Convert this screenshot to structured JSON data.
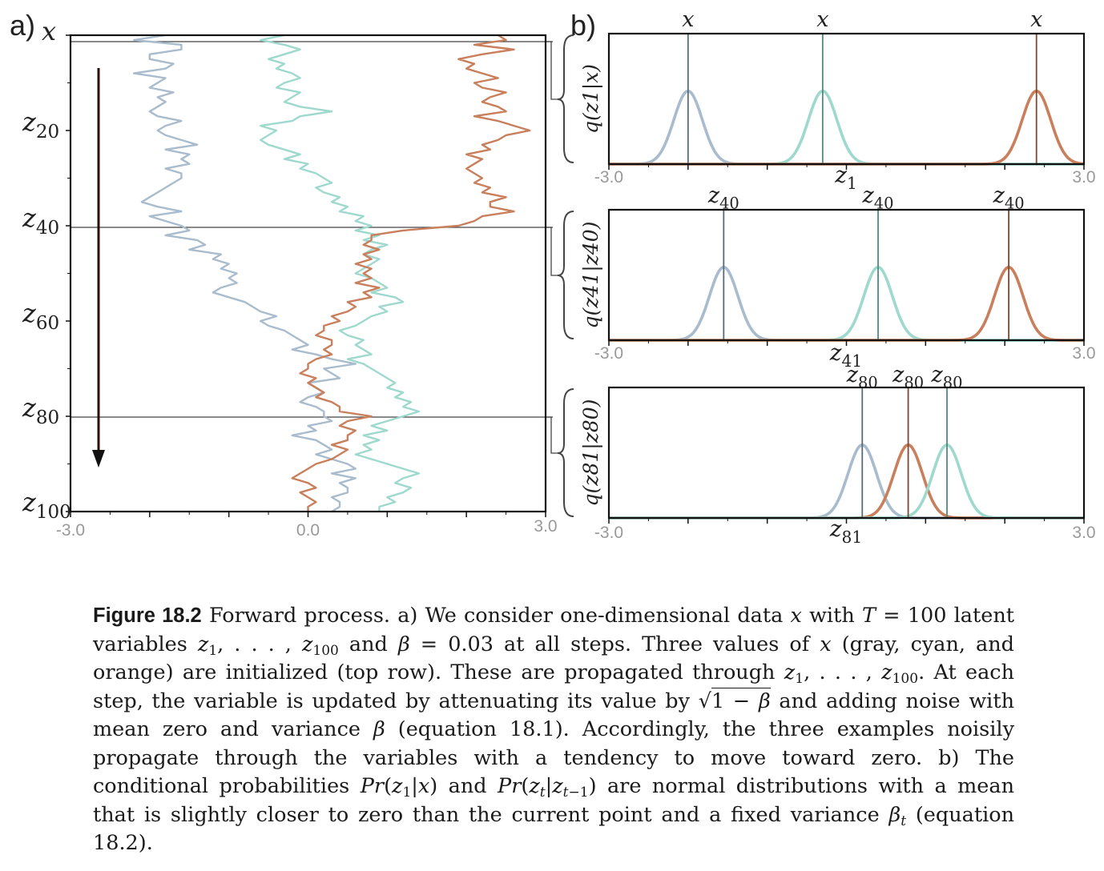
{
  "colors": {
    "gray": "#a9bccd",
    "cyan": "#9fd9ce",
    "orange": "#c97f5c",
    "gray_dark": "#5b6b78",
    "cyan_dark": "#4f8a80",
    "orange_dark": "#7a4a33",
    "axis": "#111111"
  },
  "panel_a": {
    "label": "a)",
    "ylabels": [
      "x",
      "z20",
      "z40",
      "z60",
      "z80",
      "z100"
    ]
  },
  "panel_b": {
    "label": "b)"
  },
  "chart_data": [
    {
      "type": "line",
      "panel": "a",
      "xlim": [
        -3.0,
        3.0
      ],
      "xticks": [
        "-3.0",
        "0.0",
        "3.0"
      ],
      "y_steps": [
        0,
        100
      ],
      "arrow": "downward",
      "series": [
        {
          "color": "gray",
          "values": [
            -1.8,
            -2.2,
            -1.6,
            -1.6,
            -2.0,
            -2.0,
            -1.7,
            -1.8,
            -2.2,
            -1.8,
            -1.9,
            -2.0,
            -1.7,
            -1.9,
            -1.8,
            -1.9,
            -2.0,
            -1.9,
            -1.6,
            -1.8,
            -1.9,
            -1.8,
            -1.6,
            -1.4,
            -1.8,
            -1.5,
            -1.6,
            -1.5,
            -1.8,
            -1.6,
            -1.6,
            -1.7,
            -1.8,
            -1.9,
            -2.0,
            -2.1,
            -1.9,
            -1.6,
            -2.0,
            -1.8,
            -1.6,
            -1.5,
            -1.8,
            -1.4,
            -1.3,
            -1.5,
            -1.1,
            -1.2,
            -1.0,
            -1.1,
            -0.9,
            -1.0,
            -0.9,
            -1.1,
            -1.2,
            -1.0,
            -0.8,
            -0.7,
            -0.6,
            -0.4,
            -0.6,
            -0.5,
            -0.3,
            -0.2,
            -0.1,
            0.0,
            -0.2,
            0.1,
            0.3,
            0.6,
            0.2,
            0.3,
            0.4,
            0.0,
            0.1,
            0.2,
            0.0,
            -0.1,
            0.1,
            0.2,
            0.2,
            0.3,
            0.0,
            0.1,
            -0.2,
            0.1,
            0.2,
            0.3,
            0.1,
            0.3,
            0.5,
            0.6,
            0.3,
            0.6,
            0.4,
            0.5,
            0.5,
            0.3,
            0.4,
            0.4,
            0.3
          ]
        },
        {
          "color": "cyan",
          "values": [
            -0.3,
            -0.6,
            -0.3,
            -0.1,
            -0.3,
            -0.5,
            -0.3,
            -0.4,
            -0.2,
            -0.1,
            -0.3,
            -0.4,
            -0.1,
            -0.2,
            -0.3,
            -0.1,
            0.3,
            -0.1,
            -0.2,
            -0.6,
            -0.4,
            -0.5,
            -0.6,
            -0.5,
            -0.3,
            -0.1,
            -0.3,
            0.0,
            -0.1,
            0.1,
            0.2,
            0.3,
            0.1,
            0.2,
            0.4,
            0.3,
            0.5,
            0.4,
            0.7,
            0.6,
            0.8,
            0.6,
            0.9,
            0.7,
            1.0,
            0.8,
            0.7,
            0.9,
            0.8,
            0.7,
            0.6,
            0.8,
            0.9,
            1.0,
            0.8,
            1.1,
            1.2,
            0.9,
            1.0,
            0.8,
            0.7,
            0.6,
            0.4,
            0.5,
            0.7,
            0.6,
            0.7,
            0.8,
            0.5,
            0.7,
            0.8,
            0.9,
            1.0,
            1.1,
            1.0,
            1.2,
            1.1,
            1.3,
            1.2,
            1.4,
            1.2,
            1.0,
            0.8,
            1.0,
            0.7,
            0.9,
            0.7,
            0.8,
            0.6,
            0.8,
            1.0,
            1.2,
            1.4,
            1.2,
            1.1,
            1.3,
            1.2,
            1.0,
            1.1,
            0.9,
            0.9
          ]
        },
        {
          "color": "orange",
          "values": [
            2.4,
            2.5,
            2.1,
            2.6,
            2.2,
            1.9,
            2.1,
            2.0,
            2.2,
            2.4,
            2.1,
            2.2,
            2.5,
            2.3,
            2.2,
            2.4,
            2.5,
            2.1,
            2.4,
            2.6,
            2.8,
            2.5,
            2.4,
            2.2,
            2.3,
            2.0,
            2.2,
            2.1,
            2.0,
            2.1,
            2.2,
            2.1,
            2.3,
            2.2,
            2.5,
            2.3,
            2.3,
            2.6,
            2.2,
            2.1,
            1.9,
            1.2,
            0.8,
            0.8,
            0.7,
            0.9,
            0.7,
            0.8,
            0.6,
            0.8,
            0.7,
            0.8,
            0.6,
            0.9,
            0.7,
            0.8,
            0.5,
            0.6,
            0.5,
            0.3,
            0.4,
            0.2,
            0.2,
            0.1,
            0.3,
            0.3,
            0.2,
            0.3,
            0.1,
            0.0,
            0.0,
            -0.1,
            0.1,
            0.0,
            0.1,
            0.2,
            0.1,
            0.3,
            0.4,
            0.4,
            0.8,
            0.5,
            0.4,
            0.6,
            0.5,
            0.5,
            0.3,
            0.5,
            0.4,
            0.3,
            0.1,
            0.0,
            -0.1,
            -0.2,
            0.0,
            0.1,
            -0.1,
            0.0,
            0.1,
            0.0,
            0.0
          ]
        }
      ]
    },
    {
      "type": "line",
      "panel": "b1",
      "xlim": [
        -3.0,
        3.0
      ],
      "xticks": [
        "-3.0",
        "3.0"
      ],
      "xlabel": "z1",
      "ylabel": "q(z1|x)",
      "series": [
        {
          "color": "gray",
          "mean": -2.0,
          "marker": "x"
        },
        {
          "color": "cyan",
          "mean": -0.3,
          "marker": "x"
        },
        {
          "color": "orange",
          "mean": 2.4,
          "marker": "x"
        }
      ]
    },
    {
      "type": "line",
      "panel": "b2",
      "xlim": [
        -3.0,
        3.0
      ],
      "xticks": [
        "-3.0",
        "3.0"
      ],
      "xlabel": "z41",
      "ylabel": "q(z41|z40)",
      "series": [
        {
          "color": "gray",
          "mean": -1.55,
          "marker": "z40"
        },
        {
          "color": "cyan",
          "mean": 0.4,
          "marker": "z40"
        },
        {
          "color": "orange",
          "mean": 2.05,
          "marker": "z40"
        }
      ]
    },
    {
      "type": "line",
      "panel": "b3",
      "xlim": [
        -3.0,
        3.0
      ],
      "xticks": [
        "-3.0",
        "3.0"
      ],
      "xlabel": "z81",
      "ylabel": "q(z81|z80)",
      "series": [
        {
          "color": "gray",
          "mean": 0.2,
          "marker": "z80"
        },
        {
          "color": "orange",
          "mean": 0.78,
          "marker": "z80"
        },
        {
          "color": "cyan",
          "mean": 1.27,
          "marker": "z80"
        }
      ]
    }
  ],
  "caption": {
    "label": "Figure 18.2",
    "t1": "Forward process. a) We consider one-dimensional data ",
    "t2": " with ",
    "t3": " = 100 latent variables ",
    "t4": " and ",
    "t5": " = 0.03 at all steps. Three values of ",
    "t6": " (gray, cyan, and orange) are initialized (top row). These are propagated through ",
    "t7": ". At each step, the variable is updated by attenuating its value by ",
    "t8": " and adding noise with mean zero and variance ",
    "t9": " (equation 18.1). Accordingly, the three examples noisily propagate through the variables with a tendency to move toward zero. b) The conditional probabilities ",
    "t10": " and ",
    "t11": " are normal distributions with a mean that is slightly closer to zero than the current point and a fixed variance ",
    "t12": " (equation 18.2)."
  }
}
